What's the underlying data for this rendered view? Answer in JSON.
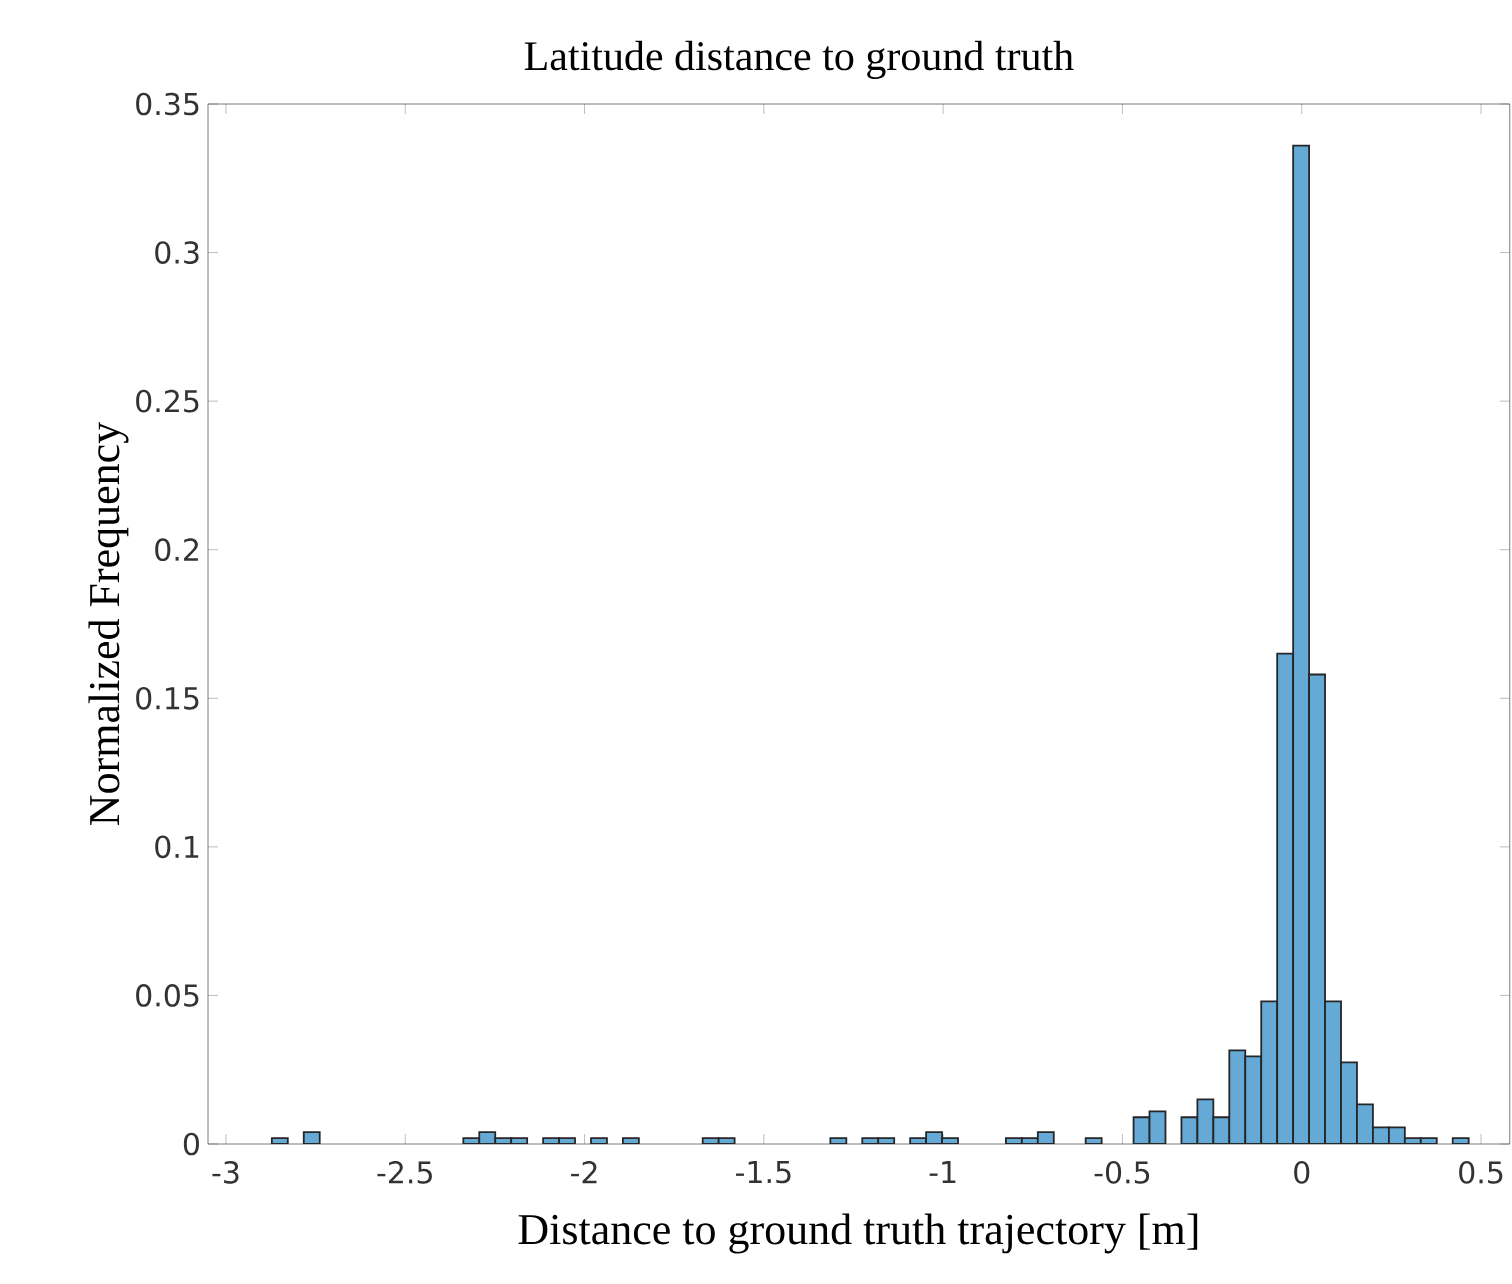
{
  "chart_data": {
    "type": "histogram",
    "title": "Latitude distance to ground truth",
    "xlabel": "Distance to ground truth trajectory [m]",
    "ylabel": "Normalized Frequency",
    "color": "#65a9d7",
    "bins": [
      -2.872,
      -2.8275,
      -2.783,
      -2.7385,
      -2.694,
      -2.6495,
      -2.605,
      -2.5605,
      -2.516,
      -2.4715,
      -2.427,
      -2.3825,
      -2.338,
      -2.2935,
      -2.249,
      -2.2045,
      -2.16,
      -2.1155,
      -2.071,
      -2.0265,
      -1.982,
      -1.9375,
      -1.893,
      -1.8485,
      -1.804,
      -1.7595,
      -1.715,
      -1.6705,
      -1.626,
      -1.5815,
      -1.537,
      -1.4925,
      -1.448,
      -1.4035,
      -1.359,
      -1.3145,
      -1.27,
      -1.2255,
      -1.181,
      -1.1365,
      -1.092,
      -1.0475,
      -1.003,
      -0.9585,
      -0.914,
      -0.8695,
      -0.825,
      -0.7805,
      -0.736,
      -0.6915,
      -0.647,
      -0.6025,
      -0.558,
      -0.5135,
      -0.469,
      -0.4245,
      -0.38,
      -0.3355,
      -0.291,
      -0.2465,
      -0.202,
      -0.1575,
      -0.113,
      -0.0685,
      -0.024,
      0.0205,
      0.065,
      0.1095,
      0.154,
      0.1985,
      0.243,
      0.2875,
      0.332,
      0.3765,
      0.421,
      0.4655
    ],
    "values": [
      0.002,
      0,
      0.004,
      0,
      0,
      0,
      0,
      0,
      0,
      0,
      0,
      0,
      0.002,
      0.004,
      0.002,
      0.002,
      0,
      0.002,
      0.002,
      0,
      0.002,
      0,
      0.002,
      0,
      0,
      0,
      0,
      0.002,
      0.002,
      0,
      0,
      0,
      0,
      0,
      0,
      0.002,
      0,
      0.002,
      0.002,
      0,
      0.002,
      0.004,
      0.002,
      0,
      0,
      0,
      0.002,
      0.002,
      0.004,
      0,
      0,
      0.002,
      0,
      0,
      0.009,
      0.011,
      0,
      0.009,
      0.015,
      0.009,
      0.0315,
      0.0295,
      0.048,
      0.165,
      0.336,
      0.158,
      0.048,
      0.0275,
      0.0133,
      0.0056,
      0.0056,
      0.002,
      0.002,
      0,
      0.002
    ],
    "xlim": [
      -3.05,
      0.58
    ],
    "ylim": [
      0,
      0.35
    ],
    "xticks": [
      -3,
      -2.5,
      -2,
      -1.5,
      -1,
      -0.5,
      0,
      0.5
    ],
    "yticks": [
      0,
      0.05,
      0.1,
      0.15,
      0.2,
      0.25,
      0.3,
      0.35
    ],
    "grid": false
  }
}
